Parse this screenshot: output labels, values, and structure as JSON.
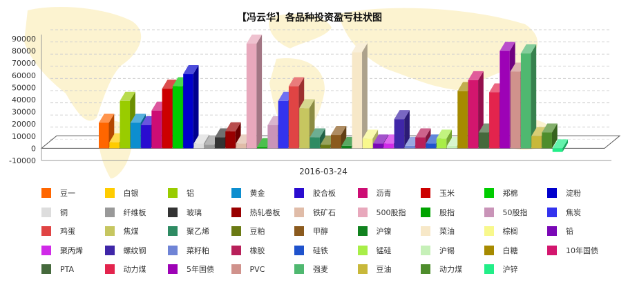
{
  "chart_data": {
    "type": "bar",
    "title": "【冯云华】各品种投资盈亏柱状图",
    "categories": [
      "2016-03-24"
    ],
    "ylim": [
      -10000,
      90000
    ],
    "yticks": [
      "90000",
      "80000",
      "70000",
      "60000",
      "50000",
      "40000",
      "30000",
      "20000",
      "10000",
      "0",
      "-10000"
    ],
    "ytick_values": [
      90000,
      80000,
      70000,
      60000,
      50000,
      40000,
      30000,
      20000,
      10000,
      0,
      -10000
    ],
    "grid": true,
    "legend_position": "bottom",
    "series": [
      {
        "name": "豆一",
        "color": "#ff6600",
        "value": 21000
      },
      {
        "name": "白银",
        "color": "#ffcc00",
        "value": 5000
      },
      {
        "name": "铝",
        "color": "#99cc00",
        "value": 39000
      },
      {
        "name": "黄金",
        "color": "#0d8ecf",
        "value": 21000
      },
      {
        "name": "胶合板",
        "color": "#2a0cd0",
        "value": 19000
      },
      {
        "name": "沥青",
        "color": "#cd0d74",
        "value": 31000
      },
      {
        "name": "玉米",
        "color": "#cc0000",
        "value": 49000
      },
      {
        "name": "郑棉",
        "color": "#00cc00",
        "value": 51000
      },
      {
        "name": "淀粉",
        "color": "#0000cc",
        "value": 61000
      },
      {
        "name": "铜",
        "color": "#dddddd",
        "value": 4000
      },
      {
        "name": "纤维板",
        "color": "#999999",
        "value": 3000
      },
      {
        "name": "玻璃",
        "color": "#333333",
        "value": 9000
      },
      {
        "name": "热轧卷板",
        "color": "#990000",
        "value": 14000
      },
      {
        "name": "铁矿石",
        "color": "#e0bca8",
        "value": 4000
      },
      {
        "name": "500股指",
        "color": "#e8a8bc",
        "value": 86000
      },
      {
        "name": "股指",
        "color": "#00a300",
        "value": 1000
      },
      {
        "name": "50股指",
        "color": "#c994b8",
        "value": 19000
      },
      {
        "name": "焦炭",
        "color": "#3333ee",
        "value": 39000
      },
      {
        "name": "鸡蛋",
        "color": "#e04444",
        "value": 51000
      },
      {
        "name": "焦煤",
        "color": "#c6c660",
        "value": 33000
      },
      {
        "name": "聚乙烯",
        "color": "#2e8b63",
        "value": 9000
      },
      {
        "name": "豆粕",
        "color": "#6b7a14",
        "value": 3000
      },
      {
        "name": "甲醇",
        "color": "#8b5a1e",
        "value": 11000
      },
      {
        "name": "沪镍",
        "color": "#11821f",
        "value": 2000
      },
      {
        "name": "菜油",
        "color": "#f7e8c8",
        "value": 79000
      },
      {
        "name": "棕榈",
        "color": "#f8f88c",
        "value": 8000
      },
      {
        "name": "铅",
        "color": "#7a08b6",
        "value": 4000
      },
      {
        "name": "聚丙烯",
        "color": "#d02ae8",
        "value": 4000
      },
      {
        "name": "螺纹钢",
        "color": "#3f26a8",
        "value": 24000
      },
      {
        "name": "菜籽粕",
        "color": "#6f84d6",
        "value": 2000
      },
      {
        "name": "橡胶",
        "color": "#b8205a",
        "value": 9000
      },
      {
        "name": "硅铁",
        "color": "#1f52cc",
        "value": 4000
      },
      {
        "name": "锰硅",
        "color": "#a8ee48",
        "value": 8000
      },
      {
        "name": "沪锡",
        "color": "#c6f0b8",
        "value": 2000
      },
      {
        "name": "白糖",
        "color": "#a68a00",
        "value": 47000
      },
      {
        "name": "10年国债",
        "color": "#d3166e",
        "value": 56000
      },
      {
        "name": "PTA",
        "color": "#45693c",
        "value": 13000
      },
      {
        "name": "动力煤",
        "color": "#e3244d",
        "value": 46000
      },
      {
        "name": "5年国债",
        "color": "#9d02b6",
        "value": 80000
      },
      {
        "name": "PVC",
        "color": "#d0928c",
        "value": 63000
      },
      {
        "name": "强麦",
        "color": "#4fb870",
        "value": 78000
      },
      {
        "name": "豆油",
        "color": "#c8b83a",
        "value": 10000
      },
      {
        "name": "动力煤",
        "color": "#4e8d2c",
        "value": 13000
      },
      {
        "name": "沪锌",
        "color": "#22ee88",
        "value": -3000
      }
    ]
  }
}
